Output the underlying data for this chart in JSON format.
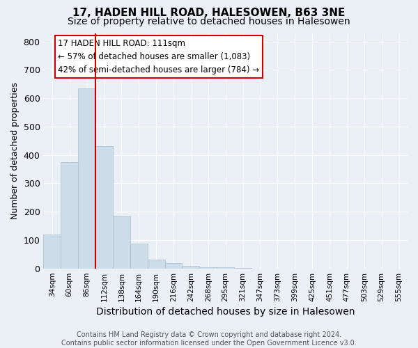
{
  "title1": "17, HADEN HILL ROAD, HALESOWEN, B63 3NE",
  "title2": "Size of property relative to detached houses in Halesowen",
  "xlabel": "Distribution of detached houses by size in Halesowen",
  "ylabel": "Number of detached properties",
  "categories": [
    "34sqm",
    "60sqm",
    "86sqm",
    "112sqm",
    "138sqm",
    "164sqm",
    "190sqm",
    "216sqm",
    "242sqm",
    "268sqm",
    "295sqm",
    "321sqm",
    "347sqm",
    "373sqm",
    "399sqm",
    "425sqm",
    "451sqm",
    "477sqm",
    "503sqm",
    "529sqm",
    "555sqm"
  ],
  "values": [
    120,
    375,
    635,
    430,
    185,
    88,
    30,
    18,
    10,
    5,
    3,
    1,
    0,
    0,
    0,
    0,
    0,
    0,
    0,
    0,
    0
  ],
  "bar_color": "#ccdce8",
  "bar_edge_color": "#aabfcc",
  "marker_label": "17 HADEN HILL ROAD: 111sqm",
  "annotation_line1": "← 57% of detached houses are smaller (1,083)",
  "annotation_line2": "42% of semi-detached houses are larger (784) →",
  "annotation_box_color": "#ffffff",
  "annotation_box_edge": "#cc0000",
  "vline_color": "#cc0000",
  "ylim": [
    0,
    830
  ],
  "yticks": [
    0,
    100,
    200,
    300,
    400,
    500,
    600,
    700,
    800
  ],
  "footer": "Contains HM Land Registry data © Crown copyright and database right 2024.\nContains public sector information licensed under the Open Government Licence v3.0.",
  "background_color": "#eaf0f6",
  "plot_background": "#eaf0f6",
  "grid_color": "#ffffff",
  "title1_fontsize": 11,
  "title2_fontsize": 10,
  "xlabel_fontsize": 10,
  "ylabel_fontsize": 9
}
